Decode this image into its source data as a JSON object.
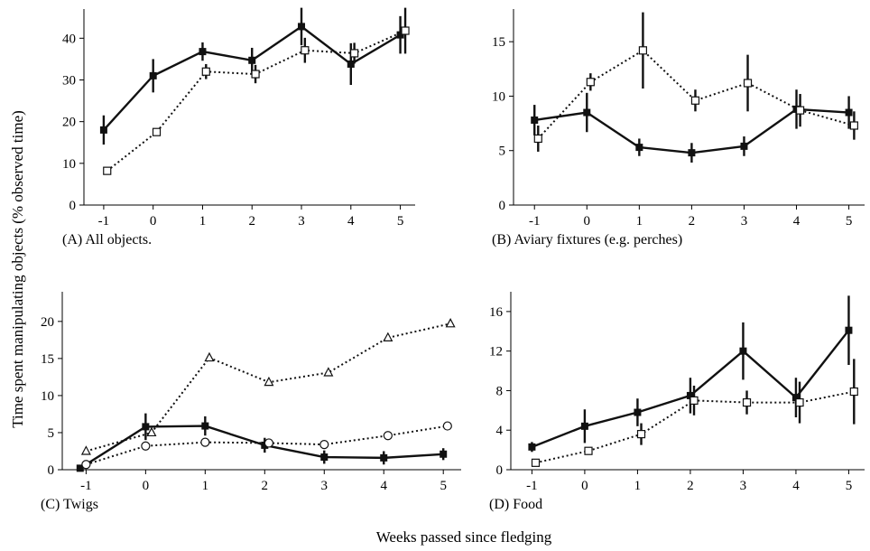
{
  "figure": {
    "ylabel": "Time spent manipulating objects (% observed time)",
    "xlabel": "Weeks passed since fledging"
  },
  "chart_data": [
    {
      "type": "line",
      "caption": "(A) All objects.",
      "x_ticks": [
        -1,
        0,
        1,
        2,
        3,
        4,
        5
      ],
      "xlim": [
        -1.4,
        5.3
      ],
      "y_ticks": [
        0,
        10,
        20,
        30,
        40
      ],
      "ylim": [
        0,
        47
      ],
      "series": [
        {
          "style": "solid",
          "marker": "filled-square",
          "color": "#111111",
          "points": [
            {
              "x": -1,
              "y": 18,
              "err": 3.5
            },
            {
              "x": 0,
              "y": 31,
              "err": 4
            },
            {
              "x": 1,
              "y": 36.8,
              "err": 2.2
            },
            {
              "x": 2,
              "y": 34.7,
              "err": 3
            },
            {
              "x": 3,
              "y": 42.8,
              "err": 4.5
            },
            {
              "x": 4,
              "y": 33.8,
              "err": 5
            },
            {
              "x": 5,
              "y": 40.8,
              "err": 4.5
            }
          ]
        },
        {
          "style": "dotted",
          "marker": "open-square",
          "color": "#111111",
          "points": [
            {
              "x": -0.93,
              "y": 8.2,
              "err": 0
            },
            {
              "x": 0.07,
              "y": 17.5,
              "err": 0
            },
            {
              "x": 1.07,
              "y": 32,
              "err": 1.8
            },
            {
              "x": 2.07,
              "y": 31.4,
              "err": 2.2
            },
            {
              "x": 3.07,
              "y": 37.1,
              "err": 3
            },
            {
              "x": 4.07,
              "y": 36.4,
              "err": 2.5
            },
            {
              "x": 5.1,
              "y": 41.8,
              "err": 5.5
            }
          ]
        }
      ]
    },
    {
      "type": "line",
      "caption": "(B) Aviary fixtures (e.g. perches)",
      "x_ticks": [
        -1,
        0,
        1,
        2,
        3,
        4,
        5
      ],
      "xlim": [
        -1.4,
        5.3
      ],
      "y_ticks": [
        0,
        5,
        10,
        15
      ],
      "ylim": [
        0,
        18
      ],
      "series": [
        {
          "style": "solid",
          "marker": "filled-square",
          "color": "#111111",
          "points": [
            {
              "x": -1,
              "y": 7.8,
              "err": 1.4
            },
            {
              "x": 0,
              "y": 8.5,
              "err": 1.8
            },
            {
              "x": 1,
              "y": 5.3,
              "err": 0.8
            },
            {
              "x": 2,
              "y": 4.8,
              "err": 0.9
            },
            {
              "x": 3,
              "y": 5.4,
              "err": 0.9
            },
            {
              "x": 4,
              "y": 8.8,
              "err": 1.8
            },
            {
              "x": 5,
              "y": 8.5,
              "err": 1.5
            }
          ]
        },
        {
          "style": "dotted",
          "marker": "open-square",
          "color": "#111111",
          "points": [
            {
              "x": -0.93,
              "y": 6.1,
              "err": 1.2
            },
            {
              "x": 0.07,
              "y": 11.3,
              "err": 0.8
            },
            {
              "x": 1.07,
              "y": 14.2,
              "err": 3.5
            },
            {
              "x": 2.07,
              "y": 9.6,
              "err": 1
            },
            {
              "x": 3.07,
              "y": 11.2,
              "err": 2.6
            },
            {
              "x": 4.07,
              "y": 8.7,
              "err": 1.5
            },
            {
              "x": 5.1,
              "y": 7.3,
              "err": 1.3
            }
          ]
        }
      ]
    },
    {
      "type": "line",
      "caption": "(C) Twigs",
      "x_ticks": [
        -1,
        0,
        1,
        2,
        3,
        4,
        5
      ],
      "xlim": [
        -1.4,
        5.3
      ],
      "y_ticks": [
        0,
        5,
        10,
        15,
        20
      ],
      "ylim": [
        0,
        24
      ],
      "series": [
        {
          "style": "solid",
          "marker": "filled-square",
          "color": "#111111",
          "points": [
            {
              "x": -1.1,
              "y": 0.2,
              "err": 0
            },
            {
              "x": 0,
              "y": 5.8,
              "err": 1.8
            },
            {
              "x": 1,
              "y": 5.9,
              "err": 1.3
            },
            {
              "x": 2,
              "y": 3.3,
              "err": 1
            },
            {
              "x": 3,
              "y": 1.7,
              "err": 0.9
            },
            {
              "x": 4,
              "y": 1.6,
              "err": 0.9
            },
            {
              "x": 5,
              "y": 2.1,
              "err": 0.8
            }
          ]
        },
        {
          "style": "dotted",
          "marker": "open-triangle",
          "color": "#111111",
          "points": [
            {
              "x": -1,
              "y": 2.5,
              "err": 0
            },
            {
              "x": 0.1,
              "y": 5,
              "err": 0
            },
            {
              "x": 1.07,
              "y": 15.1,
              "err": 0
            },
            {
              "x": 2.07,
              "y": 11.8,
              "err": 0
            },
            {
              "x": 3.07,
              "y": 13.1,
              "err": 0
            },
            {
              "x": 4.07,
              "y": 17.8,
              "err": 0
            },
            {
              "x": 5.12,
              "y": 19.7,
              "err": 0
            }
          ]
        },
        {
          "style": "dotted",
          "marker": "open-circle",
          "color": "#111111",
          "points": [
            {
              "x": -1,
              "y": 0.7,
              "err": 0
            },
            {
              "x": 0,
              "y": 3.2,
              "err": 0
            },
            {
              "x": 1,
              "y": 3.7,
              "err": 0
            },
            {
              "x": 2.07,
              "y": 3.6,
              "err": 0
            },
            {
              "x": 3,
              "y": 3.4,
              "err": 0
            },
            {
              "x": 4.07,
              "y": 4.6,
              "err": 0
            },
            {
              "x": 5.07,
              "y": 5.9,
              "err": 0
            }
          ]
        }
      ]
    },
    {
      "type": "line",
      "caption": "(D) Food",
      "x_ticks": [
        -1,
        0,
        1,
        2,
        3,
        4,
        5
      ],
      "xlim": [
        -1.4,
        5.3
      ],
      "y_ticks": [
        0,
        4,
        8,
        12,
        16
      ],
      "ylim": [
        0,
        18
      ],
      "series": [
        {
          "style": "solid",
          "marker": "filled-square",
          "color": "#111111",
          "points": [
            {
              "x": -1,
              "y": 2.3,
              "err": 0.5
            },
            {
              "x": 0,
              "y": 4.4,
              "err": 1.7
            },
            {
              "x": 1,
              "y": 5.8,
              "err": 1.4
            },
            {
              "x": 2,
              "y": 7.5,
              "err": 1.8
            },
            {
              "x": 3,
              "y": 12,
              "err": 2.9
            },
            {
              "x": 4,
              "y": 7.3,
              "err": 2
            },
            {
              "x": 5,
              "y": 14.1,
              "err": 3.5
            }
          ]
        },
        {
          "style": "dotted",
          "marker": "open-square",
          "color": "#111111",
          "points": [
            {
              "x": -0.93,
              "y": 0.7,
              "err": 0
            },
            {
              "x": 0.07,
              "y": 1.9,
              "err": 0
            },
            {
              "x": 1.07,
              "y": 3.6,
              "err": 1.1
            },
            {
              "x": 2.07,
              "y": 7,
              "err": 1.5
            },
            {
              "x": 3.07,
              "y": 6.8,
              "err": 1.2
            },
            {
              "x": 4.07,
              "y": 6.8,
              "err": 2.1
            },
            {
              "x": 5.1,
              "y": 7.9,
              "err": 3.3
            }
          ]
        }
      ]
    }
  ]
}
